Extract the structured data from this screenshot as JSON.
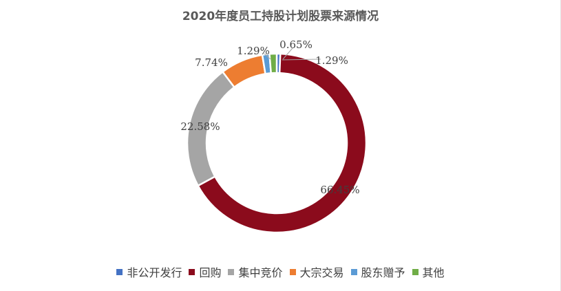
{
  "chart_data": {
    "type": "pie",
    "style": "donut",
    "title": "2020年度员工持股计划股票来源情况",
    "slices": [
      {
        "name": "非公开发行",
        "value": 0.65,
        "label": "0.65%",
        "color": "#4472C4"
      },
      {
        "name": "回购",
        "value": 66.45,
        "label": "66.45%",
        "color": "#8B0B1C"
      },
      {
        "name": "集中竞价",
        "value": 22.58,
        "label": "22.58%",
        "color": "#A5A5A5"
      },
      {
        "name": "大宗交易",
        "value": 7.74,
        "label": "7.74%",
        "color": "#ED7D31"
      },
      {
        "name": "股东赠予",
        "value": 1.29,
        "label": "1.29%",
        "color": "#5B9BD5"
      },
      {
        "name": "其他",
        "value": 1.29,
        "label": "1.29%",
        "color": "#70AD47"
      }
    ],
    "legend_position": "bottom",
    "label_color": "#404040",
    "leader_line_color": "#A6A6A6"
  }
}
